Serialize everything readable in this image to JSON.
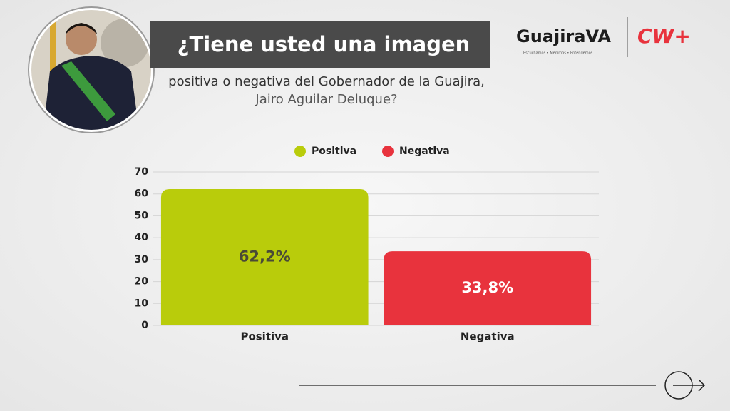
{
  "branding": {
    "logo": "GuajiraVA",
    "tagline": "Escuchamos • Medimos • Entendemos",
    "partner": "CW+"
  },
  "chart_data": {
    "type": "bar",
    "title": "¿Tiene usted una imagen",
    "subtitle": [
      "positiva o negativa del Gobernador de la Guajira,",
      "Jairo Aguilar Deluque?"
    ],
    "categories": [
      "Positiva",
      "Negativa"
    ],
    "values": [
      62.2,
      33.8
    ],
    "value_labels": [
      "62,2%",
      "33,8%"
    ],
    "colors": [
      "#b9cc0b",
      "#e8333d"
    ],
    "value_label_colors": [
      "#4a4a36",
      "#ffffff"
    ],
    "ylim": [
      0,
      70
    ],
    "yticks": [
      0,
      10,
      20,
      30,
      40,
      50,
      60,
      70
    ],
    "grid": true,
    "legend": "top"
  }
}
